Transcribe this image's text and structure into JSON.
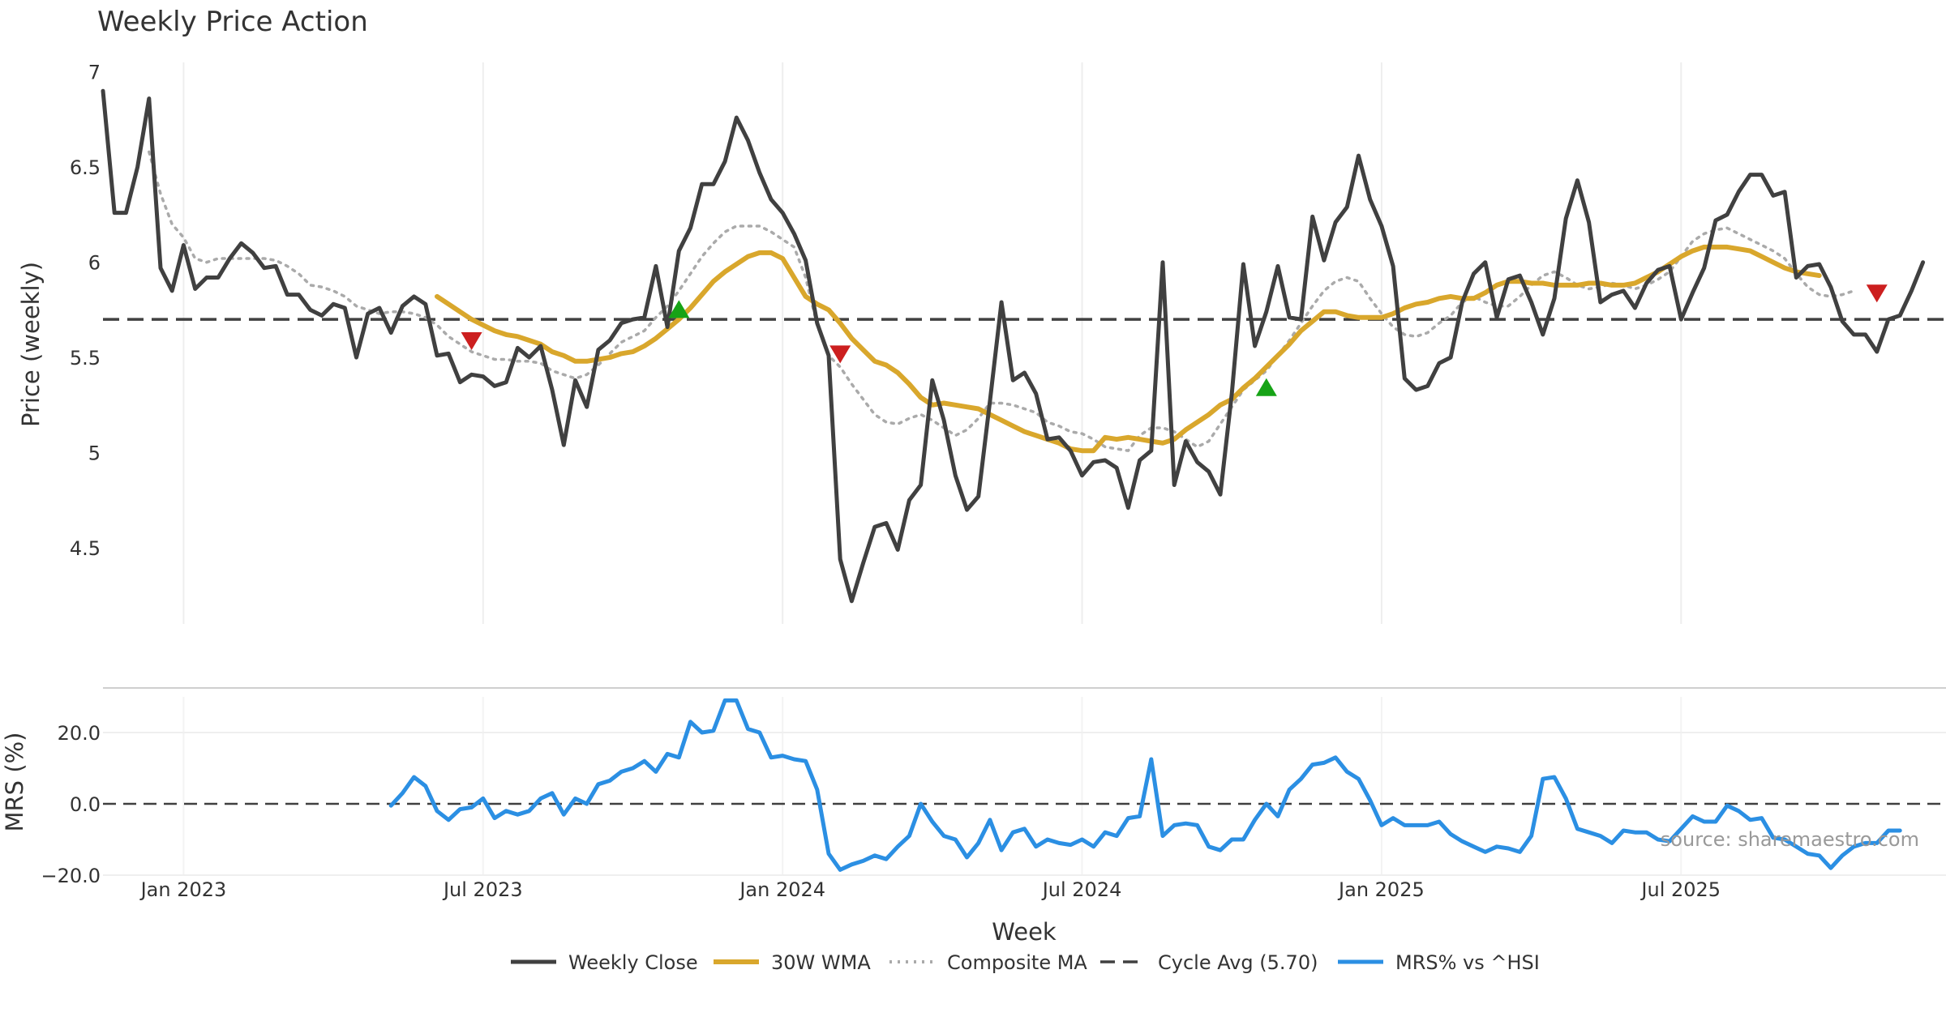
{
  "chart_data": {
    "type": "line",
    "title": "Weekly Price Action",
    "xlabel": "Week",
    "watermark": "source: sharemaestro.com",
    "top_panel": {
      "ylabel": "Price (weekly)",
      "ylim": [
        4.1,
        7.05
      ],
      "yticks": [
        4.5,
        5,
        5.5,
        6,
        6.5,
        7
      ],
      "ytick_labels": [
        "4.5",
        "5",
        "5.5",
        "6",
        "6.5",
        "7"
      ],
      "grid": "vertical",
      "cycle_avg": 5.7
    },
    "bottom_panel": {
      "ylabel": "MRS (%)",
      "ylim": [
        -20,
        30
      ],
      "yticks": [
        -20,
        0,
        20
      ],
      "ytick_labels": [
        "−20.0",
        "0.0",
        "20.0"
      ],
      "zero_line": 0
    },
    "x_axis": {
      "tick_weeks": [
        7,
        33,
        59,
        85,
        111,
        137
      ],
      "tick_labels": [
        "Jan 2023",
        "Jul 2023",
        "Jan 2024",
        "Jul 2024",
        "Jan 2025",
        "Jul 2025"
      ],
      "xlim": [
        0,
        160
      ]
    },
    "series": [
      {
        "name": "Weekly Close",
        "color": "#404040",
        "style": "solid",
        "values": [
          6.9,
          6.26,
          6.26,
          6.5,
          6.86,
          5.97,
          5.85,
          6.09,
          5.86,
          5.92,
          5.92,
          6.02,
          6.1,
          6.05,
          5.97,
          5.98,
          5.83,
          5.83,
          5.75,
          5.72,
          5.78,
          5.76,
          5.5,
          5.73,
          5.76,
          5.63,
          5.77,
          5.82,
          5.78,
          5.51,
          5.52,
          5.37,
          5.41,
          5.4,
          5.35,
          5.37,
          5.55,
          5.5,
          5.56,
          5.33,
          5.04,
          5.38,
          5.24,
          5.54,
          5.59,
          5.68,
          5.7,
          5.71,
          5.98,
          5.66,
          6.06,
          6.18,
          6.41,
          6.41,
          6.53,
          6.76,
          6.64,
          6.47,
          6.33,
          6.26,
          6.15,
          6.01,
          5.68,
          5.51,
          4.44,
          4.22,
          4.42,
          4.61,
          4.63,
          4.49,
          4.75,
          4.83,
          5.38,
          5.17,
          4.88,
          4.7,
          4.77,
          5.27,
          5.79,
          5.38,
          5.42,
          5.31,
          5.07,
          5.08,
          5.01,
          4.88,
          4.95,
          4.96,
          4.92,
          4.71,
          4.96,
          5.01,
          6.0,
          4.83,
          5.06,
          4.95,
          4.9,
          4.78,
          5.31,
          5.99,
          5.56,
          5.74,
          5.98,
          5.71,
          5.7,
          6.24,
          6.01,
          6.21,
          6.29,
          6.56,
          6.33,
          6.19,
          5.98,
          5.39,
          5.33,
          5.35,
          5.47,
          5.5,
          5.79,
          5.94,
          6.0,
          5.71,
          5.91,
          5.93,
          5.79,
          5.62,
          5.81,
          6.23,
          6.43,
          6.21,
          5.79,
          5.83,
          5.85,
          5.76,
          5.89,
          5.96,
          5.98,
          5.7,
          5.84,
          5.97,
          6.22,
          6.25,
          6.37,
          6.46,
          6.46,
          6.35,
          6.37,
          5.92,
          5.98,
          5.99,
          5.87,
          5.69,
          5.62,
          5.62,
          5.53,
          5.7,
          5.72,
          5.85,
          6.0
        ]
      },
      {
        "name": "30W WMA",
        "color": "#d9a72c",
        "style": "solid",
        "start_week": 29,
        "values": [
          5.82,
          5.78,
          5.74,
          5.7,
          5.67,
          5.64,
          5.62,
          5.61,
          5.59,
          5.57,
          5.53,
          5.51,
          5.48,
          5.48,
          5.49,
          5.5,
          5.52,
          5.53,
          5.56,
          5.6,
          5.65,
          5.7,
          5.76,
          5.83,
          5.9,
          5.95,
          5.99,
          6.03,
          6.05,
          6.05,
          6.02,
          5.92,
          5.82,
          5.78,
          5.75,
          5.68,
          5.6,
          5.54,
          5.48,
          5.46,
          5.42,
          5.36,
          5.29,
          5.25,
          5.26,
          5.25,
          5.24,
          5.23,
          5.2,
          5.17,
          5.14,
          5.11,
          5.09,
          5.07,
          5.05,
          5.02,
          5.01,
          5.01,
          5.08,
          5.07,
          5.08,
          5.07,
          5.06,
          5.05,
          5.07,
          5.12,
          5.16,
          5.2,
          5.25,
          5.28,
          5.34,
          5.39,
          5.45,
          5.51,
          5.57,
          5.64,
          5.69,
          5.74,
          5.74,
          5.72,
          5.71,
          5.71,
          5.71,
          5.73,
          5.76,
          5.78,
          5.79,
          5.81,
          5.82,
          5.81,
          5.81,
          5.84,
          5.88,
          5.9,
          5.9,
          5.89,
          5.89,
          5.88,
          5.88,
          5.88,
          5.89,
          5.89,
          5.88,
          5.88,
          5.89,
          5.92,
          5.95,
          5.99,
          6.03,
          6.06,
          6.08,
          6.08,
          6.08,
          6.07,
          6.06,
          6.03,
          6.0,
          5.97,
          5.95,
          5.94,
          5.93
        ]
      },
      {
        "name": "Composite MA",
        "color": "#aaaaaa",
        "style": "dotted",
        "start_week": 4,
        "values": [
          6.58,
          6.36,
          6.2,
          6.13,
          6.02,
          6.0,
          6.02,
          6.02,
          6.02,
          6.02,
          6.02,
          6.01,
          5.98,
          5.94,
          5.88,
          5.87,
          5.85,
          5.82,
          5.77,
          5.75,
          5.73,
          5.74,
          5.74,
          5.73,
          5.71,
          5.67,
          5.61,
          5.57,
          5.53,
          5.51,
          5.49,
          5.49,
          5.48,
          5.48,
          5.47,
          5.43,
          5.41,
          5.39,
          5.41,
          5.46,
          5.52,
          5.58,
          5.61,
          5.64,
          5.71,
          5.77,
          5.85,
          5.94,
          6.03,
          6.1,
          6.16,
          6.19,
          6.19,
          6.19,
          6.16,
          6.12,
          6.08,
          5.92,
          5.67,
          5.51,
          5.45,
          5.36,
          5.28,
          5.2,
          5.16,
          5.15,
          5.18,
          5.2,
          5.17,
          5.13,
          5.09,
          5.12,
          5.18,
          5.26,
          5.26,
          5.25,
          5.23,
          5.21,
          5.16,
          5.14,
          5.11,
          5.1,
          5.07,
          5.03,
          5.02,
          5.01,
          5.09,
          5.13,
          5.13,
          5.11,
          5.07,
          5.03,
          5.06,
          5.15,
          5.24,
          5.33,
          5.38,
          5.43,
          5.51,
          5.59,
          5.68,
          5.77,
          5.85,
          5.9,
          5.92,
          5.9,
          5.81,
          5.73,
          5.66,
          5.62,
          5.61,
          5.63,
          5.68,
          5.72,
          5.79,
          5.82,
          5.79,
          5.77,
          5.77,
          5.82,
          5.88,
          5.93,
          5.95,
          5.92,
          5.88,
          5.86,
          5.87,
          5.89,
          5.88,
          5.86,
          5.88,
          5.91,
          5.95,
          6.03,
          6.11,
          6.15,
          6.17,
          6.18,
          6.15,
          6.12,
          6.09,
          6.06,
          6.02,
          5.94,
          5.87,
          5.83,
          5.82,
          5.83,
          5.85
        ]
      },
      {
        "name": "Cycle Avg (5.70)",
        "color": "#404040",
        "style": "dashed",
        "value": 5.7
      },
      {
        "name": "MRS% vs ^HSI",
        "color": "#2b8fe3",
        "style": "solid",
        "panel": "bottom",
        "start_week": 25,
        "values": [
          -0.5,
          3.0,
          7.5,
          5.0,
          -2.0,
          -4.5,
          -1.5,
          -1.0,
          1.5,
          -4.0,
          -2.0,
          -3.0,
          -2.0,
          1.5,
          3.0,
          -3.0,
          1.5,
          0.0,
          5.5,
          6.5,
          9.0,
          10.0,
          12.0,
          9.0,
          14.0,
          13.0,
          23.0,
          20.0,
          20.5,
          29.0,
          29.0,
          21.0,
          20.0,
          13.0,
          13.5,
          12.5,
          12.0,
          4.0,
          -14.0,
          -18.5,
          -17.0,
          -16.0,
          -14.5,
          -15.5,
          -12.0,
          -9.0,
          0.0,
          -5.0,
          -9.0,
          -10.0,
          -15.0,
          -11.0,
          -4.5,
          -13.0,
          -8.0,
          -7.0,
          -12.0,
          -10.0,
          -11.0,
          -11.5,
          -10.0,
          -12.0,
          -8.0,
          -9.0,
          -4.0,
          -3.5,
          12.5,
          -9.0,
          -6.0,
          -5.5,
          -6.0,
          -12.0,
          -13.0,
          -10.0,
          -10.0,
          -4.5,
          0.0,
          -3.5,
          4.0,
          7.0,
          11.0,
          11.5,
          13.0,
          9.0,
          7.0,
          1.0,
          -6.0,
          -4.0,
          -6.0,
          -6.0,
          -6.0,
          -5.0,
          -8.5,
          -10.5,
          -12.0,
          -13.5,
          -12.0,
          -12.5,
          -13.5,
          -9.0,
          7.0,
          7.5,
          1.5,
          -7.0,
          -8.0,
          -9.0,
          -11.0,
          -7.5,
          -8.0,
          -8.0,
          -10.0,
          -10.5,
          -7.0,
          -3.5,
          -5.0,
          -5.0,
          -0.5,
          -2.0,
          -4.5,
          -4.0,
          -9.5,
          -10.0,
          -12.0,
          -14.0,
          -14.5,
          -18.0,
          -14.5,
          -12.0,
          -11.0,
          -11.0,
          -7.5,
          -7.5
        ]
      }
    ],
    "signals": [
      {
        "type": "sell",
        "week": 32,
        "value": 5.59,
        "color": "#cc1f1f"
      },
      {
        "type": "buy",
        "week": 50,
        "value": 5.75,
        "color": "#16a316"
      },
      {
        "type": "sell",
        "week": 64,
        "value": 5.52,
        "color": "#cc1f1f"
      },
      {
        "type": "buy",
        "week": 101,
        "value": 5.34,
        "color": "#16a316"
      },
      {
        "type": "sell",
        "week": 154,
        "value": 5.84,
        "color": "#cc1f1f"
      }
    ],
    "legend": {
      "placement": "bottom-center",
      "entries": [
        "Weekly Close",
        "30W WMA",
        "Composite MA",
        "Cycle Avg (5.70)",
        "MRS% vs ^HSI"
      ]
    }
  }
}
